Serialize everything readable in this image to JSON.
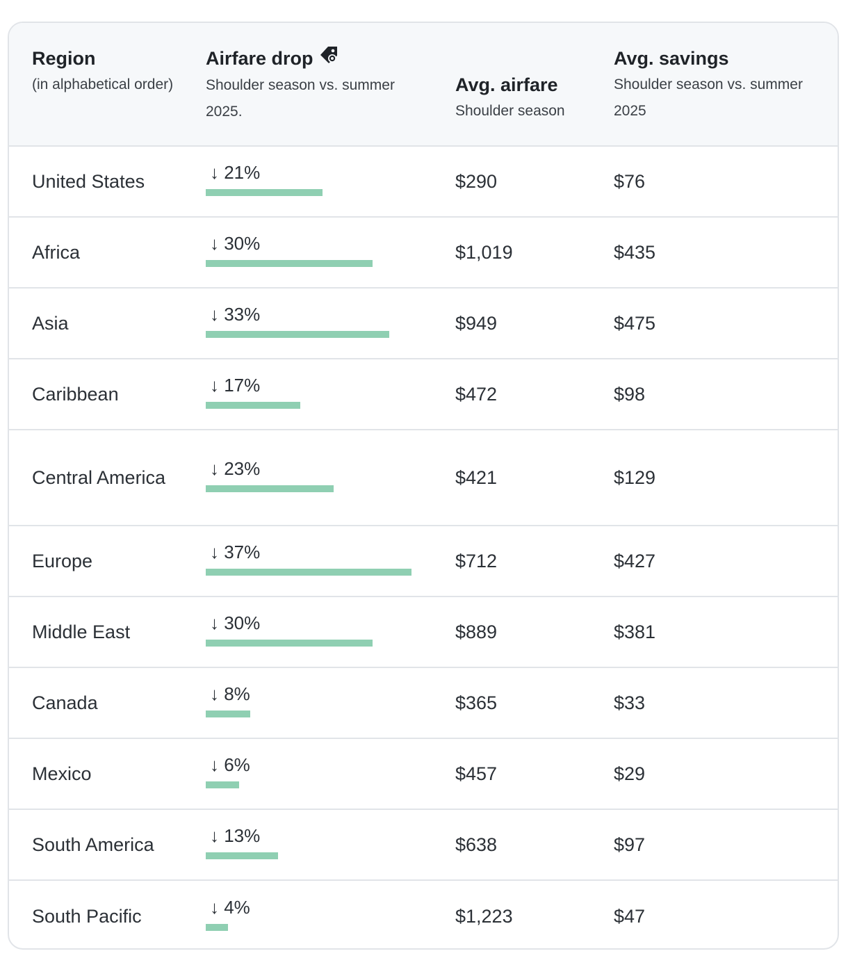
{
  "header": {
    "region": {
      "title": "Region",
      "subtitle": "(in alphabetical order)"
    },
    "airfare_drop": {
      "title": "Airfare drop",
      "subtitle": "Shoulder season vs. summer 2025.",
      "icon": "price-tag-icon"
    },
    "avg_airfare": {
      "title": "Avg. airfare",
      "subtitle": "Shoulder season"
    },
    "avg_savings": {
      "title": "Avg. savings",
      "subtitle": "Shoulder season vs. summer 2025"
    }
  },
  "colors": {
    "bar": "#8fcfb2",
    "header_bg": "#f6f8fa",
    "border": "#e1e4e8"
  },
  "chart_data": {
    "type": "table",
    "columns": [
      "Region",
      "Airfare drop",
      "Avg. airfare",
      "Avg. savings"
    ],
    "rows": [
      {
        "region": "United States",
        "drop_label": "↓ 21%",
        "drop_pct": 21,
        "airfare": "$290",
        "savings": "$76"
      },
      {
        "region": "Africa",
        "drop_label": "↓ 30%",
        "drop_pct": 30,
        "airfare": "$1,019",
        "savings": "$435"
      },
      {
        "region": "Asia",
        "drop_label": "↓ 33%",
        "drop_pct": 33,
        "airfare": "$949",
        "savings": "$475"
      },
      {
        "region": "Caribbean",
        "drop_label": "↓ 17%",
        "drop_pct": 17,
        "airfare": "$472",
        "savings": "$98"
      },
      {
        "region": "Central America",
        "drop_label": "↓ 23%",
        "drop_pct": 23,
        "airfare": "$421",
        "savings": "$129"
      },
      {
        "region": "Europe",
        "drop_label": "↓ 37%",
        "drop_pct": 37,
        "airfare": "$712",
        "savings": "$427"
      },
      {
        "region": "Middle East",
        "drop_label": "↓ 30%",
        "drop_pct": 30,
        "airfare": "$889",
        "savings": "$381"
      },
      {
        "region": "Canada",
        "drop_label": "↓ 8%",
        "drop_pct": 8,
        "airfare": "$365",
        "savings": "$33"
      },
      {
        "region": "Mexico",
        "drop_label": "↓ 6%",
        "drop_pct": 6,
        "airfare": "$457",
        "savings": "$29"
      },
      {
        "region": "South America",
        "drop_label": "↓ 13%",
        "drop_pct": 13,
        "airfare": "$638",
        "savings": "$97"
      },
      {
        "region": "South Pacific",
        "drop_label": "↓ 4%",
        "drop_pct": 4,
        "airfare": "$1,223",
        "savings": "$47"
      }
    ]
  }
}
